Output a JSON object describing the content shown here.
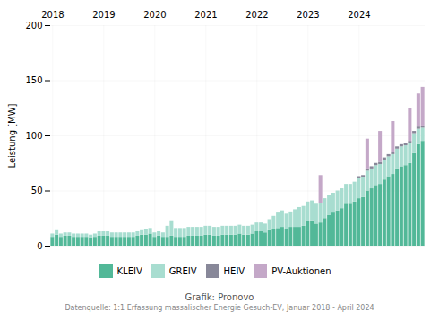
{
  "chart_data": {
    "type": "bar",
    "stacked": true,
    "ylabel": "Leistung [MW]",
    "annotations": [
      "Grafik: Pronovo",
      "Datenquelle: 1:1 Erfassung massalischer Energie Gesuch-EV, Januar 2018 - April 2024"
    ],
    "categories": [
      "2018",
      null,
      null,
      null,
      null,
      null,
      null,
      null,
      null,
      null,
      null,
      null,
      "2019",
      null,
      null,
      null,
      null,
      null,
      null,
      null,
      null,
      null,
      null,
      null,
      "2020",
      null,
      null,
      null,
      null,
      null,
      null,
      null,
      null,
      null,
      null,
      null,
      "2021",
      null,
      null,
      null,
      null,
      null,
      null,
      null,
      null,
      null,
      null,
      null,
      "2022",
      null,
      null,
      null,
      null,
      null,
      null,
      null,
      null,
      null,
      null,
      null,
      "2023",
      null,
      null,
      null,
      null,
      null,
      null,
      null,
      null,
      null,
      null,
      null,
      "2024",
      null,
      null,
      null,
      null,
      null,
      null,
      null,
      null,
      null,
      null,
      null,
      null,
      null,
      null,
      null
    ],
    "series": [
      {
        "name": "KLEIV",
        "color": "#52b898",
        "values": [
          8,
          10,
          8,
          9,
          9,
          8,
          8,
          8,
          8,
          7,
          8,
          9,
          9,
          9,
          8,
          8,
          8,
          8,
          8,
          8,
          9,
          10,
          10,
          11,
          8,
          9,
          8,
          8,
          9,
          8,
          8,
          8,
          9,
          9,
          9,
          9,
          10,
          10,
          9,
          9,
          10,
          10,
          10,
          10,
          11,
          10,
          10,
          11,
          13,
          13,
          12,
          14,
          15,
          16,
          17,
          15,
          17,
          17,
          17,
          18,
          22,
          23,
          20,
          21,
          25,
          28,
          30,
          32,
          34,
          38,
          38,
          40,
          43,
          44,
          50,
          52,
          55,
          56,
          60,
          63,
          65,
          70,
          72,
          73,
          75,
          84,
          92,
          95
        ]
      },
      {
        "name": "GREIV",
        "color": "#a8ddd0",
        "values": [
          3,
          4,
          3,
          3,
          3,
          3,
          3,
          3,
          3,
          3,
          3,
          4,
          4,
          4,
          4,
          4,
          4,
          4,
          4,
          4,
          4,
          4,
          5,
          5,
          4,
          4,
          4,
          10,
          14,
          8,
          8,
          8,
          8,
          8,
          8,
          8,
          8,
          8,
          8,
          8,
          8,
          8,
          8,
          8,
          8,
          8,
          8,
          8,
          8,
          8,
          8,
          10,
          12,
          14,
          15,
          14,
          14,
          16,
          18,
          18,
          18,
          18,
          18,
          18,
          18,
          18,
          18,
          18,
          18,
          18,
          18,
          18,
          18,
          18,
          18,
          18,
          18,
          18,
          18,
          18,
          18,
          18,
          18,
          18,
          18,
          18,
          14,
          12
        ]
      },
      {
        "name": "HEIV",
        "color": "#888899",
        "values": [
          0,
          0,
          0,
          0,
          0,
          0,
          0,
          0,
          0,
          0,
          0,
          0,
          0,
          0,
          0,
          0,
          0,
          0,
          0,
          0,
          0,
          0,
          0,
          0,
          0,
          0,
          0,
          0,
          0,
          0,
          0,
          0,
          0,
          0,
          0,
          0,
          0,
          0,
          0,
          0,
          0,
          0,
          0,
          0,
          0,
          0,
          0,
          0,
          0,
          0,
          0,
          0,
          0,
          0,
          0,
          0,
          0,
          0,
          0,
          0,
          0,
          0,
          0,
          0,
          0,
          0,
          0,
          0,
          0,
          0,
          0,
          0,
          2,
          2,
          2,
          2,
          2,
          2,
          2,
          2,
          2,
          2,
          2,
          2,
          2,
          2,
          2,
          2
        ]
      },
      {
        "name": "PV-Auktionen",
        "color": "#c4a8c8",
        "values": [
          0,
          0,
          0,
          0,
          0,
          0,
          0,
          0,
          0,
          0,
          0,
          0,
          0,
          0,
          0,
          0,
          0,
          0,
          0,
          0,
          0,
          0,
          0,
          0,
          0,
          0,
          0,
          0,
          0,
          0,
          0,
          0,
          0,
          0,
          0,
          0,
          0,
          0,
          0,
          0,
          0,
          0,
          0,
          0,
          0,
          0,
          0,
          0,
          0,
          0,
          0,
          0,
          0,
          0,
          0,
          0,
          0,
          0,
          0,
          0,
          0,
          0,
          0,
          25,
          0,
          0,
          0,
          0,
          0,
          0,
          0,
          0,
          0,
          0,
          27,
          0,
          0,
          28,
          0,
          0,
          28,
          0,
          0,
          0,
          30,
          0,
          30,
          35
        ]
      }
    ],
    "ylim": [
      0,
      200
    ],
    "yticks": [
      0,
      50,
      100,
      150,
      200
    ],
    "grid": true,
    "legend": "bottom"
  }
}
